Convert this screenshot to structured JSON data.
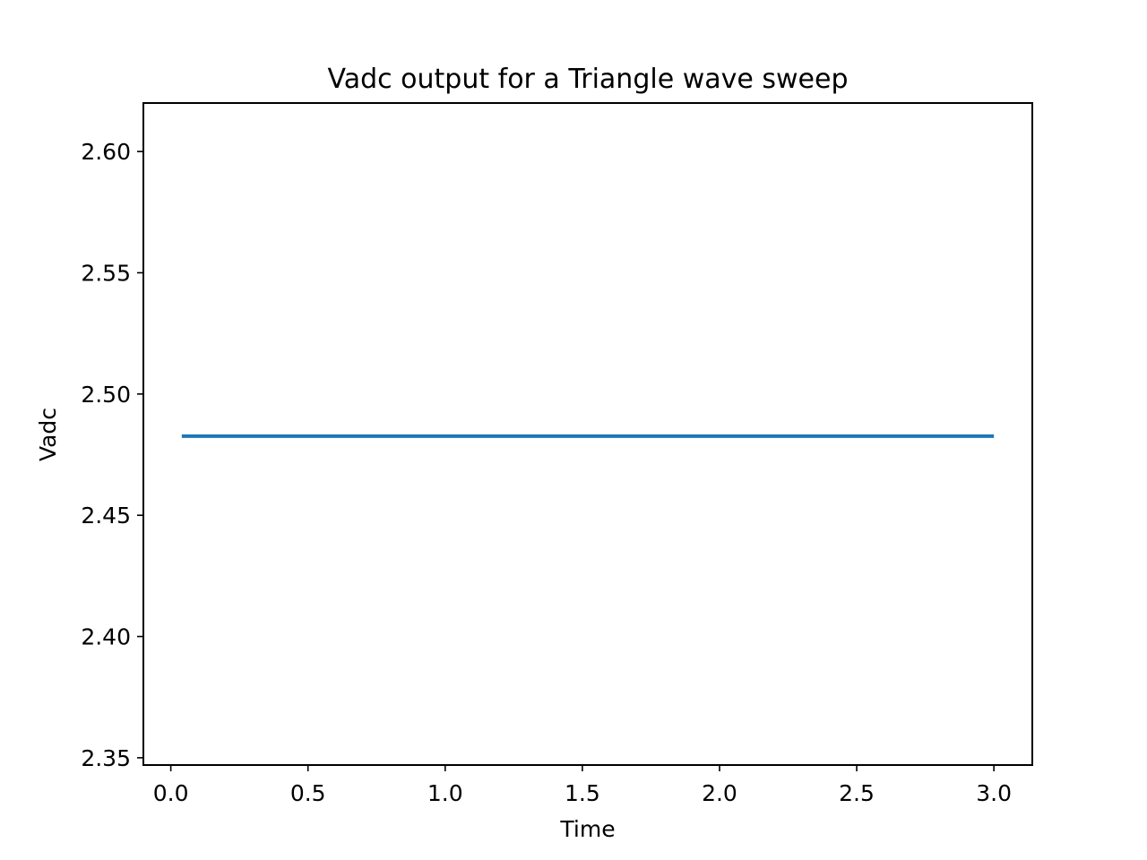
{
  "chart_data": {
    "type": "line",
    "title": "Vadc output for a Triangle wave sweep",
    "xlabel": "Time",
    "ylabel": "Vadc",
    "xlim": [
      -0.1,
      3.14
    ],
    "ylim": [
      2.347,
      2.62
    ],
    "xticks": [
      0.0,
      0.5,
      1.0,
      1.5,
      2.0,
      2.5,
      3.0
    ],
    "xtick_labels": [
      "0.0",
      "0.5",
      "1.0",
      "1.5",
      "2.0",
      "2.5",
      "3.0"
    ],
    "yticks": [
      2.35,
      2.4,
      2.45,
      2.5,
      2.55,
      2.6
    ],
    "ytick_labels": [
      "2.35",
      "2.40",
      "2.45",
      "2.50",
      "2.55",
      "2.60"
    ],
    "grid": false,
    "legend": "none",
    "series": [
      {
        "color": "#1f77b4",
        "x": [
          0.04,
          3.0
        ],
        "y": [
          2.4826,
          2.4826
        ]
      }
    ]
  }
}
